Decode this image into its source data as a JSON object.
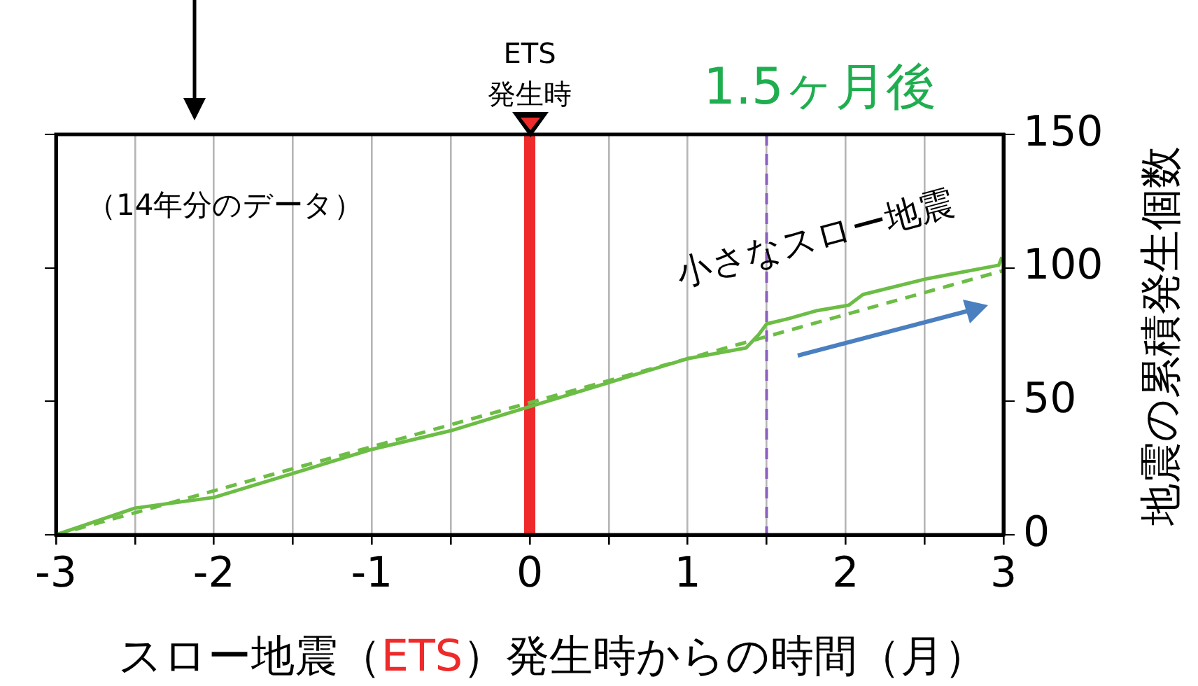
{
  "chart_data": {
    "type": "line",
    "xlabel": "スロー地震（ETS）発生時からの時間（月）",
    "ylabel": "地震の累積発生個数",
    "xlim": [
      -3,
      3
    ],
    "xticks": [
      -3,
      {
        "value": -2.5,
        "label": null
      },
      -2,
      {
        "value": -1.5,
        "label": null
      },
      -1,
      {
        "value": -0.5,
        "label": null
      },
      0,
      {
        "value": 0.5,
        "label": null
      },
      1,
      {
        "value": 1.5,
        "label": null
      },
      2,
      {
        "value": 2.5,
        "label": null
      },
      3
    ],
    "ylim": [
      0,
      150
    ],
    "yticks": [
      0,
      50,
      100,
      150
    ],
    "grid": "x",
    "legend": false,
    "marker": "none",
    "series": [
      {
        "color": "#6cbd45",
        "line_style": "solid",
        "x": [
          -3,
          -2.5,
          -2,
          -1.5,
          -1,
          -0.5,
          0,
          0.5,
          1,
          1.37,
          1.45,
          1.5,
          1.64,
          1.82,
          2.02,
          2.11,
          2.52,
          2.97,
          2.99
        ],
        "values": [
          0,
          10,
          14,
          23,
          32,
          39,
          48,
          57,
          66,
          70,
          75,
          79,
          81,
          84,
          86,
          90,
          96,
          101,
          104
        ]
      },
      {
        "color": "#6cbd45",
        "line_style": "dashed",
        "x": [
          -3,
          3
        ],
        "values": [
          0,
          99
        ]
      }
    ],
    "ref_lines": [
      {
        "axis": "x",
        "value": 0,
        "label": "ETS\n発生時",
        "color": "#ee2a2a",
        "line_style": "solid"
      },
      {
        "axis": "x",
        "value": 1.5,
        "label": "1.5ヶ月後",
        "color": "#8c5fc0",
        "line_style": "dashed"
      }
    ],
    "annotations": [
      "（14年分のデータ）",
      "小さなスロー地震"
    ]
  }
}
